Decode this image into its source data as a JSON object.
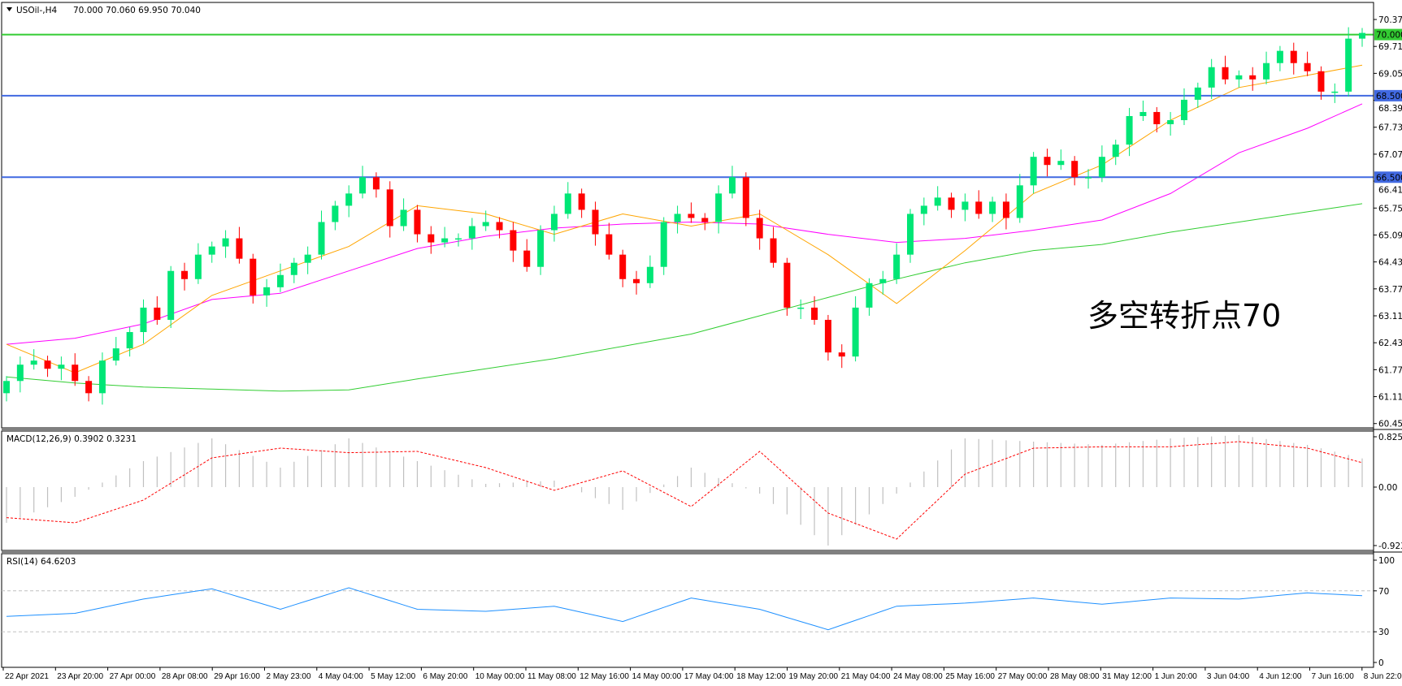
{
  "header": {
    "symbol_timeframe": "USOil-,H4",
    "ohlc": "70.000 70.060 69.950 70.040"
  },
  "colors": {
    "bull": "#00e676",
    "bear": "#ff0000",
    "ma_fast": "#ffa500",
    "ma_mid": "#ff00ff",
    "ma_slow": "#32cd32",
    "level_green": "#33cc33",
    "level_blue": "#4169e1",
    "macd_hist": "#c0c0c0",
    "macd_signal": "#ff0000",
    "rsi": "#1e90ff",
    "annotation": "#e8202a"
  },
  "annotation": "多空转折点70",
  "chart_data": [
    {
      "type": "candlestick",
      "title": "USOil-,H4",
      "ylim": [
        60.455,
        70.37
      ],
      "y_ticks": [
        "70.370",
        "69.710",
        "69.050",
        "68.390",
        "67.730",
        "67.070",
        "66.410",
        "65.750",
        "65.090",
        "64.430",
        "63.770",
        "63.110",
        "62.435",
        "61.775",
        "61.115",
        "60.455"
      ],
      "x_ticks": [
        "22 Apr 2021",
        "23 Apr 20:00",
        "27 Apr 00:00",
        "28 Apr 08:00",
        "29 Apr 16:00",
        "2 May 23:00",
        "4 May 04:00",
        "5 May 12:00",
        "6 May 20:00",
        "10 May 00:00",
        "11 May 08:00",
        "12 May 16:00",
        "14 May 00:00",
        "17 May 04:00",
        "18 May 12:00",
        "19 May 20:00",
        "21 May 04:00",
        "24 May 08:00",
        "25 May 16:00",
        "27 May 00:00",
        "28 May 08:00",
        "31 May 12:00",
        "1 Jun 20:00",
        "3 Jun 04:00",
        "4 Jun 12:00",
        "7 Jun 16:00",
        "8 Jun 22:00"
      ],
      "close": [
        61.5,
        61.9,
        62.0,
        61.8,
        61.9,
        61.5,
        61.2,
        62.0,
        62.3,
        62.7,
        63.3,
        63.0,
        64.2,
        64.0,
        64.6,
        64.8,
        65.0,
        64.5,
        63.6,
        63.8,
        64.1,
        64.4,
        64.6,
        65.4,
        65.8,
        66.1,
        66.5,
        66.2,
        65.3,
        65.7,
        65.1,
        64.9,
        65.0,
        65.0,
        65.3,
        65.4,
        65.2,
        64.7,
        64.3,
        65.2,
        65.6,
        66.1,
        65.7,
        65.1,
        64.6,
        64.0,
        63.9,
        64.3,
        65.4,
        65.6,
        65.5,
        65.4,
        66.1,
        66.5,
        65.5,
        65.0,
        64.4,
        63.3,
        63.3,
        63.0,
        62.2,
        62.1,
        63.3,
        63.9,
        64.0,
        64.6,
        65.6,
        65.8,
        66.0,
        65.7,
        65.9,
        65.6,
        65.9,
        65.5,
        66.3,
        67.0,
        66.8,
        66.9,
        66.5,
        66.5,
        67.0,
        67.3,
        68.0,
        68.1,
        67.8,
        67.9,
        68.4,
        68.7,
        69.2,
        68.9,
        69.0,
        68.9,
        69.3,
        69.6,
        69.3,
        69.1,
        68.6,
        68.6,
        69.9,
        70.04
      ],
      "moving_averages": {
        "sample_every_bars": 5,
        "fast": [
          62.4,
          61.7,
          62.4,
          63.6,
          64.2,
          64.8,
          65.8,
          65.6,
          65.1,
          65.6,
          65.3,
          65.6,
          64.6,
          63.4,
          64.7,
          66.1,
          66.8,
          67.9,
          68.7,
          69.0,
          69.25
        ],
        "mid": [
          62.4,
          62.55,
          62.9,
          63.5,
          63.65,
          64.2,
          64.75,
          65.05,
          65.25,
          65.35,
          65.4,
          65.35,
          65.1,
          64.9,
          65.0,
          65.2,
          65.45,
          66.1,
          67.1,
          67.7,
          68.3
        ],
        "slow": [
          61.6,
          61.45,
          61.35,
          61.3,
          61.25,
          61.28,
          61.55,
          61.8,
          62.05,
          62.35,
          62.65,
          63.1,
          63.55,
          64.0,
          64.4,
          64.7,
          64.85,
          65.15,
          65.4,
          65.65,
          65.85
        ]
      },
      "levels": [
        {
          "value": 70.0,
          "label": "70.000",
          "color": "#33cc33"
        },
        {
          "value": 68.5,
          "label": "68.500",
          "color": "#4169e1"
        },
        {
          "value": 66.5,
          "label": "66.500",
          "color": "#4169e1"
        }
      ],
      "grid": false
    },
    {
      "type": "bar+line",
      "title": "MACD(12,26,9) 0.3902 0.3231",
      "ylim": [
        -0.9234,
        0.8254
      ],
      "y_ticks": [
        "0.8254",
        "0.00",
        "-0.9234"
      ],
      "sample_every_bars": 5,
      "histogram": [
        -0.55,
        -0.15,
        0.4,
        0.75,
        0.3,
        0.75,
        0.4,
        0.05,
        0.1,
        -0.35,
        0.3,
        -0.1,
        -0.9,
        -0.1,
        0.75,
        0.7,
        0.65,
        0.75,
        0.8,
        0.65,
        0.39
      ],
      "signal": [
        -0.47,
        -0.55,
        -0.2,
        0.45,
        0.6,
        0.53,
        0.55,
        0.3,
        -0.05,
        0.25,
        -0.3,
        0.55,
        -0.4,
        -0.8,
        0.2,
        0.6,
        0.62,
        0.62,
        0.7,
        0.6,
        0.32
      ]
    },
    {
      "type": "line",
      "title": "RSI(14) 64.6203",
      "ylim": [
        0,
        100
      ],
      "y_ticks": [
        "100",
        "70",
        "30",
        "0"
      ],
      "levels": [
        70,
        30
      ],
      "sample_every_bars": 5,
      "values": [
        45,
        48,
        62,
        72,
        52,
        73,
        52,
        50,
        55,
        40,
        63,
        52,
        32,
        55,
        58,
        63,
        57,
        63,
        62,
        68,
        64.62
      ]
    }
  ]
}
